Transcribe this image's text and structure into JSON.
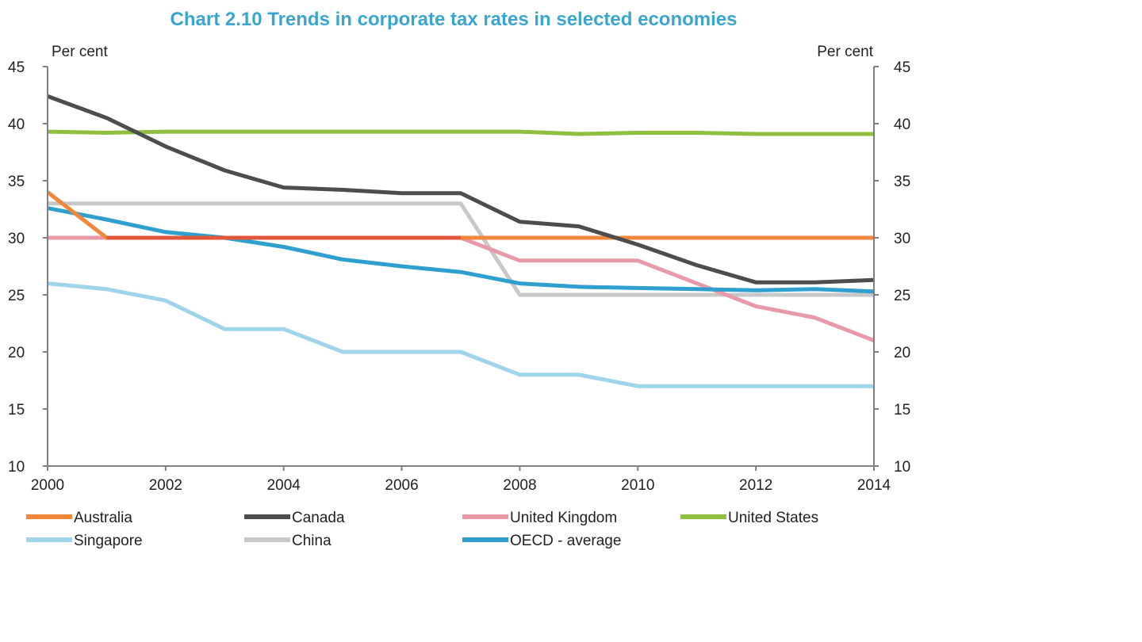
{
  "chart_data": {
    "type": "line",
    "title": "Chart 2.10 Trends in corporate tax rates in selected economies",
    "ylabel_left": "Per cent",
    "ylabel_right": "Per cent",
    "xlabel": "",
    "xlim": [
      2000,
      2014
    ],
    "ylim": [
      10,
      45
    ],
    "x_ticks": [
      "2000",
      "2002",
      "2004",
      "2006",
      "2008",
      "2010",
      "2012",
      "2014"
    ],
    "y_ticks": [
      "10",
      "15",
      "20",
      "25",
      "30",
      "35",
      "40",
      "45"
    ],
    "grid": false,
    "legend_position": "bottom",
    "x": [
      2000,
      2001,
      2002,
      2003,
      2004,
      2005,
      2006,
      2007,
      2008,
      2009,
      2010,
      2011,
      2012,
      2013,
      2014
    ],
    "series": [
      {
        "name": "Australia",
        "color": "#f0873a",
        "values": [
          34,
          30,
          30,
          30,
          30,
          30,
          30,
          30,
          30,
          30,
          30,
          30,
          30,
          30,
          30
        ]
      },
      {
        "name": "Canada",
        "color": "#4d4d4d",
        "values": [
          42.4,
          40.5,
          38,
          35.9,
          34.4,
          34.2,
          33.9,
          33.9,
          31.4,
          31,
          29.4,
          27.6,
          26.1,
          26.1,
          26.3
        ]
      },
      {
        "name": "United Kingdom",
        "color": "#e89aa8",
        "values": [
          30,
          30,
          30,
          30,
          30,
          30,
          30,
          30,
          28,
          28,
          28,
          26,
          24,
          23,
          21
        ]
      },
      {
        "name": "United States",
        "color": "#8fbf3f",
        "values": [
          39.3,
          39.2,
          39.3,
          39.3,
          39.3,
          39.3,
          39.3,
          39.3,
          39.3,
          39.1,
          39.2,
          39.2,
          39.1,
          39.1,
          39.1
        ]
      },
      {
        "name": "Singapore",
        "color": "#9fd4ea",
        "values": [
          26,
          25.5,
          24.5,
          22,
          22,
          20,
          20,
          20,
          18,
          18,
          17,
          17,
          17,
          17,
          17
        ]
      },
      {
        "name": "China",
        "color": "#c8c8c8",
        "values": [
          33,
          33,
          33,
          33,
          33,
          33,
          33,
          33,
          25,
          25,
          25,
          25,
          25,
          25,
          25
        ]
      },
      {
        "name": "OECD - average",
        "color": "#2e9fcf",
        "values": [
          32.6,
          31.6,
          30.5,
          30,
          29.2,
          28.1,
          27.5,
          27,
          26,
          25.7,
          25.6,
          25.5,
          25.4,
          25.5,
          25.3
        ]
      }
    ],
    "australia_overlap_color": "#e0573a"
  }
}
